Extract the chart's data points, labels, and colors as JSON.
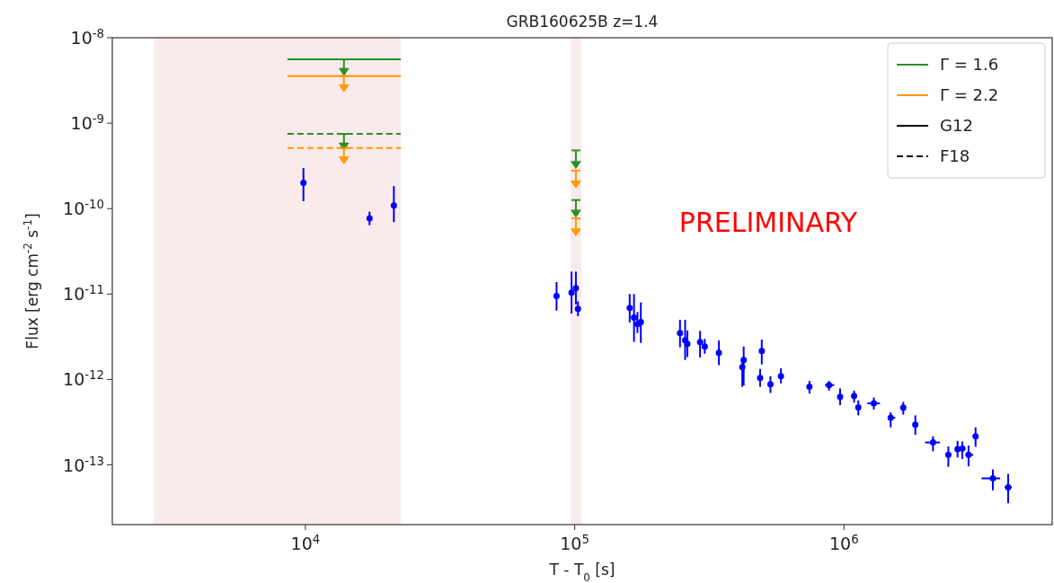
{
  "chart_data": {
    "type": "scatter",
    "title": "GRB160625B z=1.4",
    "xlabel": "T - T$_{0}$ [s]",
    "ylabel": "Flux [erg cm$^{-2}$ s$^{-1}$]",
    "log": "xy",
    "xlim": [
      1918,
      5930000
    ],
    "ylim": [
      2e-14,
      1e-08
    ],
    "xticks": [
      {
        "value": 10000,
        "label": "10$^{4}$"
      },
      {
        "value": 100000,
        "label": "10$^{5}$"
      },
      {
        "value": 1000000,
        "label": "10$^{6}$"
      }
    ],
    "yticks": [
      {
        "value": 1e-13,
        "label": "10$^{-13}$"
      },
      {
        "value": 1e-12,
        "label": "10$^{-12}$"
      },
      {
        "value": 1e-11,
        "label": "10$^{-11}$"
      },
      {
        "value": 1e-10,
        "label": "10$^{-10}$"
      },
      {
        "value": 1e-09,
        "label": "10$^{-9}$"
      },
      {
        "value": 1e-08,
        "label": "10$^{-8}$"
      }
    ],
    "grid": false,
    "legend": "top right",
    "bands": [
      {
        "axis": "x",
        "from": 2735,
        "to": 22600,
        "color": "#fbeaea"
      },
      {
        "axis": "x",
        "from": 96400,
        "to": 105700,
        "color": "#fbeaea"
      }
    ],
    "annotations": [
      "PRELIMINARY"
    ],
    "series": [
      {
        "color": "#0000ff",
        "marker": "circle",
        "x": [
          9830,
          17300,
          21300,
          85600,
          97300,
          101000,
          102800,
          160000,
          166000,
          171000,
          176000,
          246000,
          257000,
          262000,
          292000,
          304000,
          343000,
          419000,
          424000,
          495000,
          488000,
          533000,
          583000,
          744000,
          880000,
          967000,
          1090000,
          1130000,
          1290000,
          1490000,
          1660000,
          1840000,
          2140000,
          2440000,
          2640000,
          2750000,
          2900000,
          3080000,
          3570000,
          4070000
        ],
        "values": [
          2e-10,
          7.7e-11,
          1.09e-10,
          9.5e-12,
          1.04e-11,
          1.17e-11,
          6.7e-12,
          6.9e-12,
          5.3e-12,
          4.45e-12,
          4.7e-12,
          3.5e-12,
          2.88e-12,
          2.61e-12,
          2.75e-12,
          2.43e-12,
          2.05e-12,
          1.39e-12,
          1.69e-12,
          2.15e-12,
          1.04e-12,
          8.8e-13,
          1.09e-12,
          8.2e-13,
          8.6e-13,
          6.27e-13,
          6.4e-13,
          4.7e-13,
          5.25e-13,
          3.56e-13,
          4.68e-13,
          2.96e-13,
          1.83e-13,
          1.31e-13,
          1.53e-13,
          1.56e-13,
          1.31e-13,
          2.16e-13,
          6.95e-14,
          5.46e-14
        ],
        "errors": [
          [
            1.22e-10,
            2.98e-10
          ],
          [
            6.4e-11,
            9.2e-11
          ],
          [
            6.95e-11,
            1.83e-10
          ],
          [
            6.4e-12,
            1.38e-11
          ],
          [
            5.9e-12,
            1.83e-11
          ],
          [
            7.55e-12,
            1.83e-11
          ],
          [
            5.5e-12,
            8.2e-12
          ],
          [
            4.65e-12,
            1e-11
          ],
          [
            2.75e-12,
            1e-11
          ],
          [
            3.5e-12,
            6.17e-12
          ],
          [
            2.68e-12,
            7.98e-12
          ],
          [
            2.38e-12,
            5e-12
          ],
          [
            1.69e-12,
            5e-12
          ],
          [
            1.83e-12,
            3.74e-12
          ],
          [
            1.81e-12,
            3.7e-12
          ],
          [
            2e-12,
            2.98e-12
          ],
          [
            1.47e-12,
            2.86e-12
          ],
          [
            8.2e-13,
            1.76e-12
          ],
          [
            8.5e-13,
            2.43e-12
          ],
          [
            1.5e-12,
            2.93e-12
          ],
          [
            8.2e-13,
            1.33e-12
          ],
          [
            6.95e-13,
            1.09e-12
          ],
          [
            9e-13,
            1.35e-12
          ],
          [
            6.85e-13,
            9.6e-13
          ],
          [
            7.4e-13,
            9.6e-13
          ],
          [
            5e-13,
            7.85e-13
          ],
          [
            5.37e-13,
            7.4e-13
          ],
          [
            3.8e-13,
            5.7e-13
          ],
          [
            4.45e-13,
            6.15e-13
          ],
          [
            2.75e-13,
            4.12e-13
          ],
          [
            3.88e-13,
            5.46e-13
          ],
          [
            2.25e-13,
            3.8e-13
          ],
          [
            1.44e-13,
            2.16e-13
          ],
          [
            9.5e-14,
            1.65e-13
          ],
          [
            1.22e-13,
            1.91e-13
          ],
          [
            1.17e-13,
            1.88e-13
          ],
          [
            9.6e-14,
            1.69e-13
          ],
          [
            1.63e-13,
            2.75e-13
          ],
          [
            5.04e-14,
            8.85e-14
          ],
          [
            3.56e-14,
            7.85e-14
          ]
        ],
        "xerrors": [
          null,
          null,
          null,
          null,
          null,
          null,
          null,
          null,
          null,
          null,
          null,
          null,
          null,
          null,
          null,
          null,
          null,
          null,
          null,
          null,
          null,
          null,
          null,
          null,
          [
            850000,
            920000
          ],
          null,
          null,
          null,
          [
            1220000,
            1360000
          ],
          [
            1460000,
            1550000
          ],
          null,
          null,
          [
            2000000,
            2270000
          ],
          [
            2400000,
            2500000
          ],
          null,
          [
            2690000,
            2820000
          ],
          [
            2830000,
            3020000
          ],
          null,
          [
            3240000,
            3800000
          ],
          [
            3950000,
            4200000
          ]
        ]
      },
      {
        "type": "line",
        "color": "#2a8f2a",
        "line_style": "solid",
        "x": [
          8570,
          22600
        ],
        "values": [
          5.58e-09,
          5.58e-09
        ]
      },
      {
        "type": "line",
        "color": "#ff9900",
        "line_style": "solid",
        "x": [
          8570,
          22600
        ],
        "values": [
          3.56e-09,
          3.56e-09
        ]
      },
      {
        "type": "line",
        "color": "#2a8f2a",
        "line_style": "dashed",
        "x": [
          8570,
          22600
        ],
        "values": [
          7.48e-10,
          7.48e-10
        ]
      },
      {
        "type": "line",
        "color": "#ff9900",
        "line_style": "dashed",
        "x": [
          8570,
          22600
        ],
        "values": [
          5.13e-10,
          5.13e-10
        ]
      },
      {
        "name": "Γ = 1.6",
        "type": "scatter",
        "color": "#2a8f2a",
        "marker": "triangle",
        "x": [
          13900,
          13900,
          101000,
          101000
        ],
        "values": [
          3.95e-09,
          5.32e-10,
          3.24e-10,
          8.7e-11
        ],
        "errors": [
          [
            3.95e-09,
            5.58e-09
          ],
          [
            5.32e-10,
            7.48e-10
          ],
          [
            3.24e-10,
            4.8e-10
          ],
          [
            8.7e-11,
            1.26e-10
          ]
        ]
      },
      {
        "name": "Γ = 2.2",
        "type": "scatter",
        "color": "#ff9900",
        "marker": "triangle",
        "x": [
          13900,
          13900,
          101000,
          101000
        ],
        "values": [
          2.54e-09,
          3.65e-10,
          1.91e-10,
          5.25e-11
        ],
        "errors": [
          [
            2.54e-09,
            3.56e-09
          ],
          [
            3.65e-10,
            5.13e-10
          ],
          [
            1.91e-10,
            2.79e-10
          ],
          [
            5.25e-11,
            7.7e-11
          ]
        ]
      },
      {
        "name": "G12",
        "type": "line",
        "color": "#000000",
        "line_style": "solid"
      },
      {
        "name": "F18",
        "type": "line",
        "color": "#000000",
        "line_style": "dashed"
      }
    ]
  }
}
